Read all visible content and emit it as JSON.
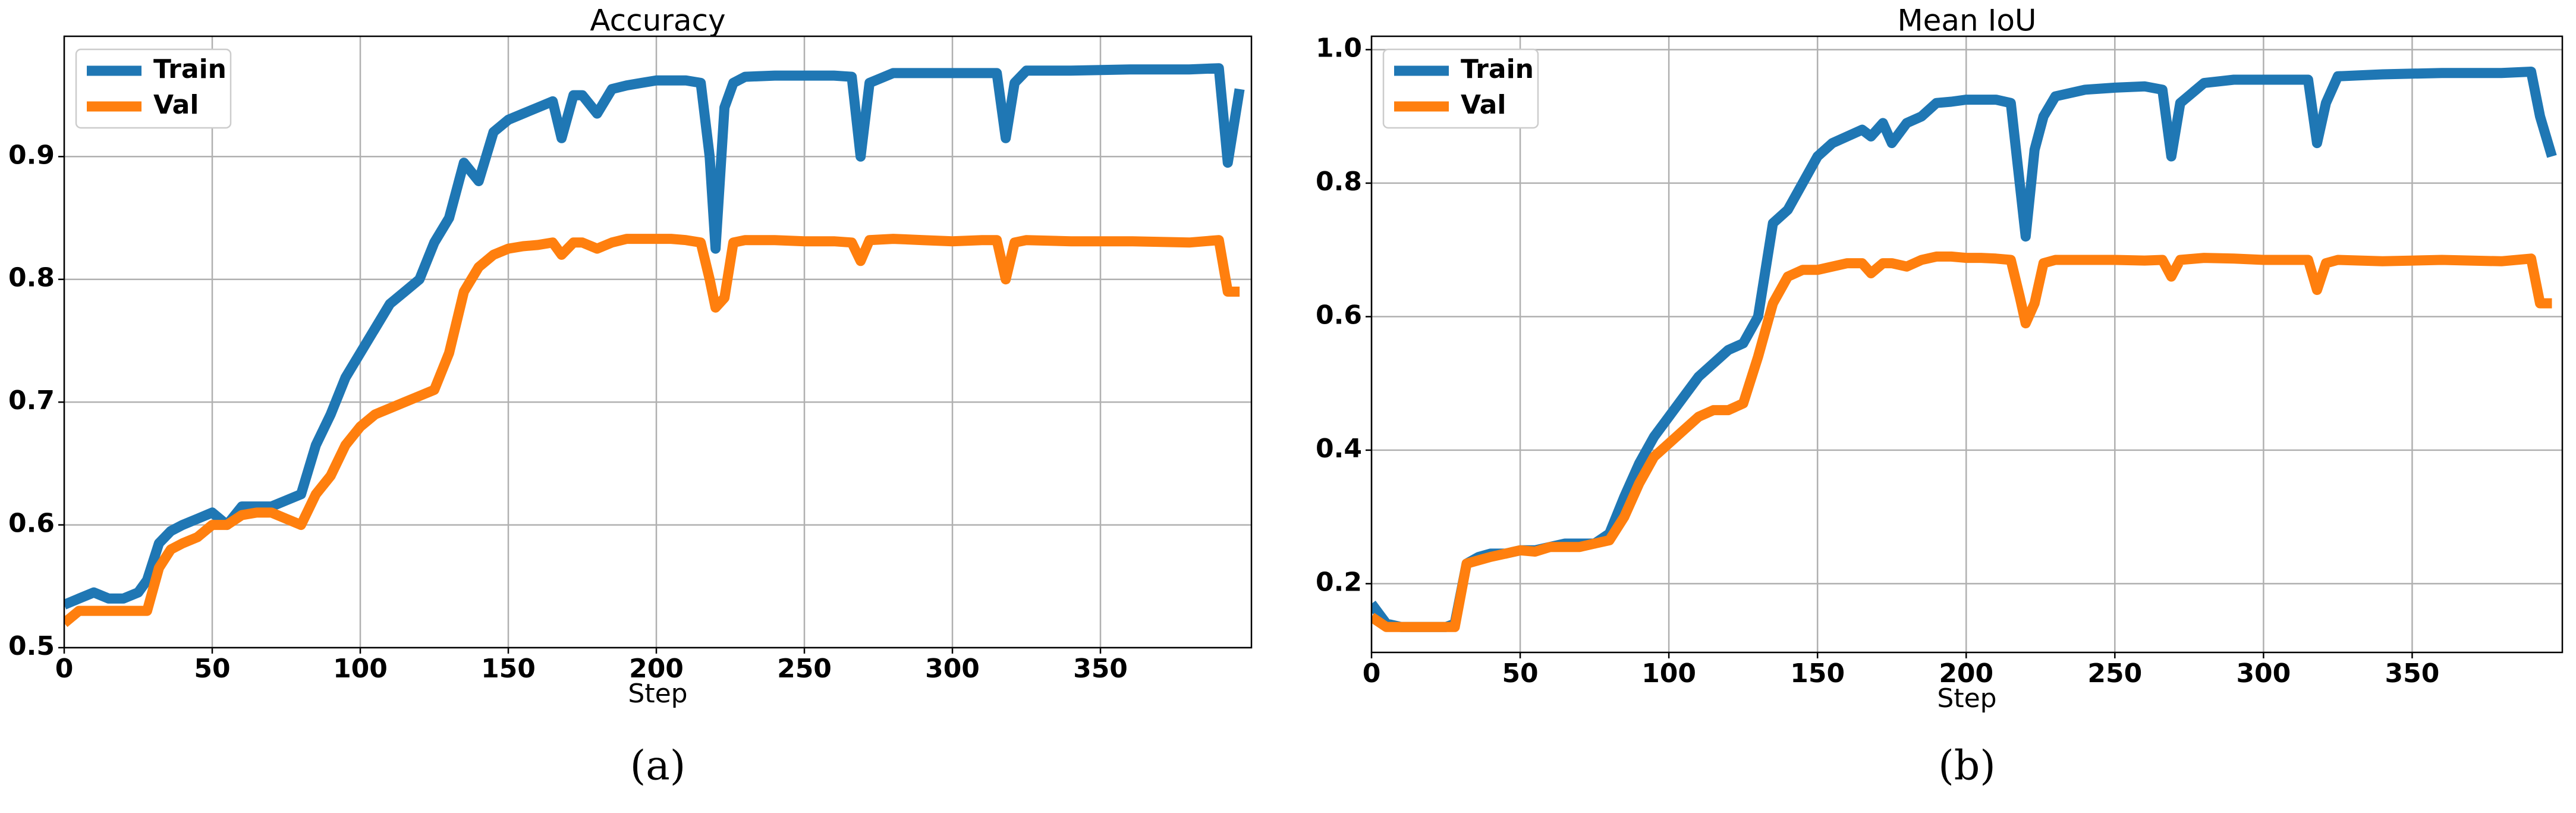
{
  "chart_data": [
    {
      "type": "line",
      "title": "Accuracy",
      "xlabel": "Step",
      "caption": "(a)",
      "grid": true,
      "legend": "upper left",
      "xlim": [
        0,
        401
      ],
      "ylim": [
        0.5,
        0.998
      ],
      "xticks": [
        0,
        50,
        100,
        150,
        200,
        250,
        300,
        350
      ],
      "yticks": [
        0.5,
        0.6,
        0.7,
        0.8,
        0.9
      ],
      "x": [
        0,
        5,
        10,
        15,
        20,
        25,
        28,
        32,
        36,
        40,
        45,
        50,
        55,
        60,
        65,
        70,
        75,
        80,
        85,
        90,
        95,
        100,
        105,
        110,
        115,
        120,
        125,
        130,
        135,
        140,
        145,
        150,
        155,
        160,
        165,
        168,
        172,
        175,
        180,
        185,
        190,
        195,
        200,
        205,
        210,
        215,
        218,
        220,
        223,
        226,
        230,
        240,
        250,
        260,
        266,
        269,
        272,
        280,
        290,
        300,
        310,
        315,
        318,
        321,
        325,
        340,
        360,
        380,
        390,
        393,
        397
      ],
      "series": [
        {
          "name": "Train",
          "color": "#1f77b4",
          "values": [
            0.535,
            0.54,
            0.545,
            0.54,
            0.54,
            0.545,
            0.555,
            0.585,
            0.595,
            0.6,
            0.605,
            0.61,
            0.6,
            0.615,
            0.615,
            0.615,
            0.62,
            0.625,
            0.665,
            0.69,
            0.72,
            0.74,
            0.76,
            0.78,
            0.79,
            0.8,
            0.83,
            0.85,
            0.895,
            0.88,
            0.92,
            0.93,
            0.935,
            0.94,
            0.945,
            0.915,
            0.95,
            0.95,
            0.935,
            0.955,
            0.958,
            0.96,
            0.962,
            0.962,
            0.962,
            0.96,
            0.9,
            0.825,
            0.94,
            0.96,
            0.965,
            0.966,
            0.966,
            0.966,
            0.965,
            0.9,
            0.96,
            0.968,
            0.968,
            0.968,
            0.968,
            0.968,
            0.915,
            0.96,
            0.97,
            0.97,
            0.971,
            0.971,
            0.972,
            0.895,
            0.955
          ]
        },
        {
          "name": "Val",
          "color": "#ff7f0e",
          "values": [
            0.52,
            0.53,
            0.53,
            0.53,
            0.53,
            0.53,
            0.53,
            0.565,
            0.58,
            0.585,
            0.59,
            0.6,
            0.6,
            0.608,
            0.61,
            0.61,
            0.605,
            0.6,
            0.625,
            0.64,
            0.665,
            0.68,
            0.69,
            0.695,
            0.7,
            0.705,
            0.71,
            0.74,
            0.79,
            0.81,
            0.82,
            0.825,
            0.827,
            0.828,
            0.83,
            0.82,
            0.83,
            0.83,
            0.825,
            0.83,
            0.833,
            0.833,
            0.833,
            0.833,
            0.832,
            0.83,
            0.8,
            0.777,
            0.785,
            0.83,
            0.832,
            0.832,
            0.831,
            0.831,
            0.83,
            0.815,
            0.832,
            0.833,
            0.832,
            0.831,
            0.832,
            0.832,
            0.8,
            0.83,
            0.832,
            0.831,
            0.831,
            0.83,
            0.832,
            0.79,
            0.79
          ]
        }
      ]
    },
    {
      "type": "line",
      "title": "Mean IoU",
      "xlabel": "Step",
      "caption": "(b)",
      "grid": true,
      "legend": "upper left",
      "xlim": [
        0,
        400.5
      ],
      "ylim": [
        0.097,
        1.02
      ],
      "xticks": [
        0,
        50,
        100,
        150,
        200,
        250,
        300,
        350
      ],
      "yticks": [
        0.2,
        0.4,
        0.6,
        0.8,
        {
          "value": 1,
          "label": "1.0"
        }
      ],
      "x": [
        0,
        5,
        10,
        15,
        20,
        25,
        28,
        32,
        36,
        40,
        45,
        50,
        55,
        60,
        65,
        70,
        75,
        80,
        85,
        90,
        95,
        100,
        105,
        110,
        115,
        120,
        125,
        130,
        135,
        140,
        145,
        150,
        155,
        160,
        165,
        168,
        172,
        175,
        180,
        185,
        190,
        195,
        200,
        205,
        210,
        215,
        218,
        220,
        223,
        226,
        230,
        240,
        250,
        260,
        266,
        269,
        272,
        280,
        290,
        300,
        310,
        315,
        318,
        321,
        325,
        340,
        360,
        380,
        390,
        393,
        397
      ],
      "series": [
        {
          "name": "Train",
          "color": "#1f77b4",
          "values": [
            0.17,
            0.14,
            0.135,
            0.135,
            0.135,
            0.135,
            0.14,
            0.23,
            0.24,
            0.245,
            0.245,
            0.25,
            0.25,
            0.255,
            0.26,
            0.26,
            0.26,
            0.275,
            0.33,
            0.38,
            0.42,
            0.45,
            0.48,
            0.51,
            0.53,
            0.55,
            0.56,
            0.6,
            0.74,
            0.76,
            0.8,
            0.84,
            0.86,
            0.87,
            0.88,
            0.87,
            0.89,
            0.86,
            0.89,
            0.9,
            0.92,
            0.922,
            0.925,
            0.925,
            0.925,
            0.92,
            0.8,
            0.72,
            0.85,
            0.9,
            0.93,
            0.94,
            0.943,
            0.945,
            0.94,
            0.84,
            0.92,
            0.95,
            0.955,
            0.955,
            0.955,
            0.955,
            0.86,
            0.92,
            0.96,
            0.963,
            0.965,
            0.965,
            0.967,
            0.9,
            0.84
          ]
        },
        {
          "name": "Val",
          "color": "#ff7f0e",
          "values": [
            0.15,
            0.135,
            0.135,
            0.135,
            0.135,
            0.135,
            0.135,
            0.23,
            0.235,
            0.24,
            0.245,
            0.25,
            0.248,
            0.255,
            0.255,
            0.255,
            0.26,
            0.265,
            0.3,
            0.35,
            0.39,
            0.41,
            0.43,
            0.45,
            0.46,
            0.46,
            0.47,
            0.54,
            0.62,
            0.66,
            0.67,
            0.67,
            0.675,
            0.68,
            0.68,
            0.665,
            0.68,
            0.68,
            0.675,
            0.685,
            0.69,
            0.69,
            0.688,
            0.688,
            0.687,
            0.685,
            0.63,
            0.59,
            0.62,
            0.68,
            0.685,
            0.685,
            0.685,
            0.684,
            0.685,
            0.66,
            0.685,
            0.688,
            0.687,
            0.685,
            0.685,
            0.685,
            0.64,
            0.68,
            0.685,
            0.683,
            0.685,
            0.683,
            0.687,
            0.62,
            0.62
          ]
        }
      ]
    }
  ]
}
